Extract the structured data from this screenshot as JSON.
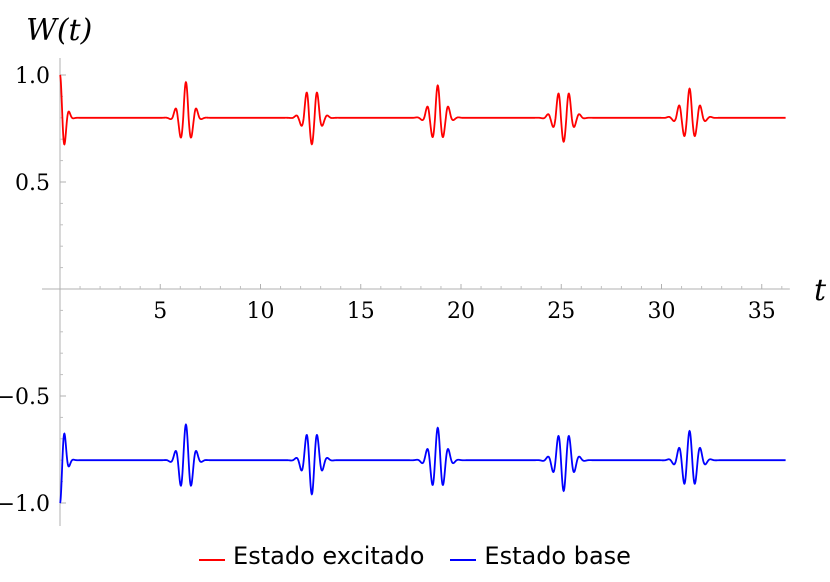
{
  "chart_data": {
    "type": "line",
    "title": "",
    "xlabel": "t",
    "ylabel": "W(t)",
    "xlim": [
      0,
      36.4
    ],
    "ylim": [
      -1.08,
      1.08
    ],
    "x_ticks": [
      5,
      10,
      15,
      20,
      25,
      30,
      35
    ],
    "x_tick_labels": [
      "5",
      "10",
      "15",
      "20",
      "25",
      "30",
      "35"
    ],
    "y_ticks": [
      1.0,
      0.5,
      -0.5,
      -1.0
    ],
    "y_tick_labels": [
      "1.0",
      "0.5",
      "−0.5",
      "−1.0"
    ],
    "grid": false,
    "legend_position": "bottom-center",
    "revival_period": 6.28,
    "series": [
      {
        "name": "Estado excitado",
        "color": "#ff0000",
        "initial_value": 1.0,
        "steady_value": 0.8,
        "revival_min": 0.66,
        "revival_max": 0.98
      },
      {
        "name": "Estado base",
        "color": "#0000ff",
        "initial_value": -1.0,
        "steady_value": -0.8,
        "revival_min": -0.98,
        "revival_max": -0.62
      }
    ]
  }
}
